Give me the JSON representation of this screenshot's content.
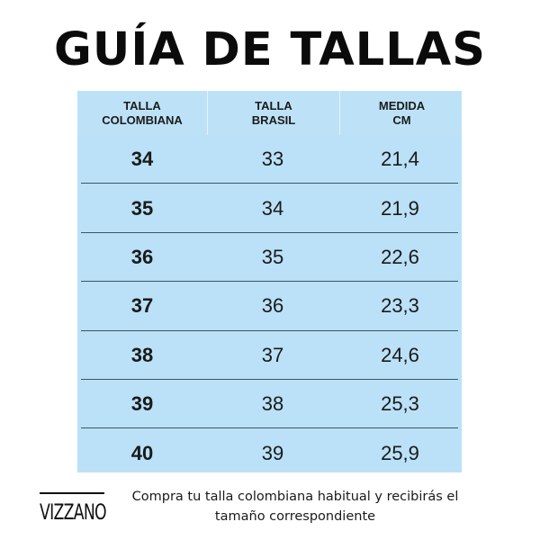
{
  "title": "GUÍA DE TALLAS",
  "table": {
    "headers": [
      {
        "line1": "TALLA",
        "line2": "COLOMBIANA"
      },
      {
        "line1": "TALLA",
        "line2": "BRASIL"
      },
      {
        "line1": "MEDIDA",
        "line2": "CM"
      }
    ],
    "rows": [
      [
        "34",
        "33",
        "21,4"
      ],
      [
        "35",
        "34",
        "21,9"
      ],
      [
        "36",
        "35",
        "22,6"
      ],
      [
        "37",
        "36",
        "23,3"
      ],
      [
        "38",
        "37",
        "24,6"
      ],
      [
        "39",
        "38",
        "25,3"
      ],
      [
        "40",
        "39",
        "25,9"
      ]
    ]
  },
  "brand": "VIZZANO",
  "note": "Compra tu talla colombiana habitual y recibirás el tamaño correspondiente",
  "colors": {
    "table_bg": "#bae1f7",
    "text": "#111111"
  }
}
